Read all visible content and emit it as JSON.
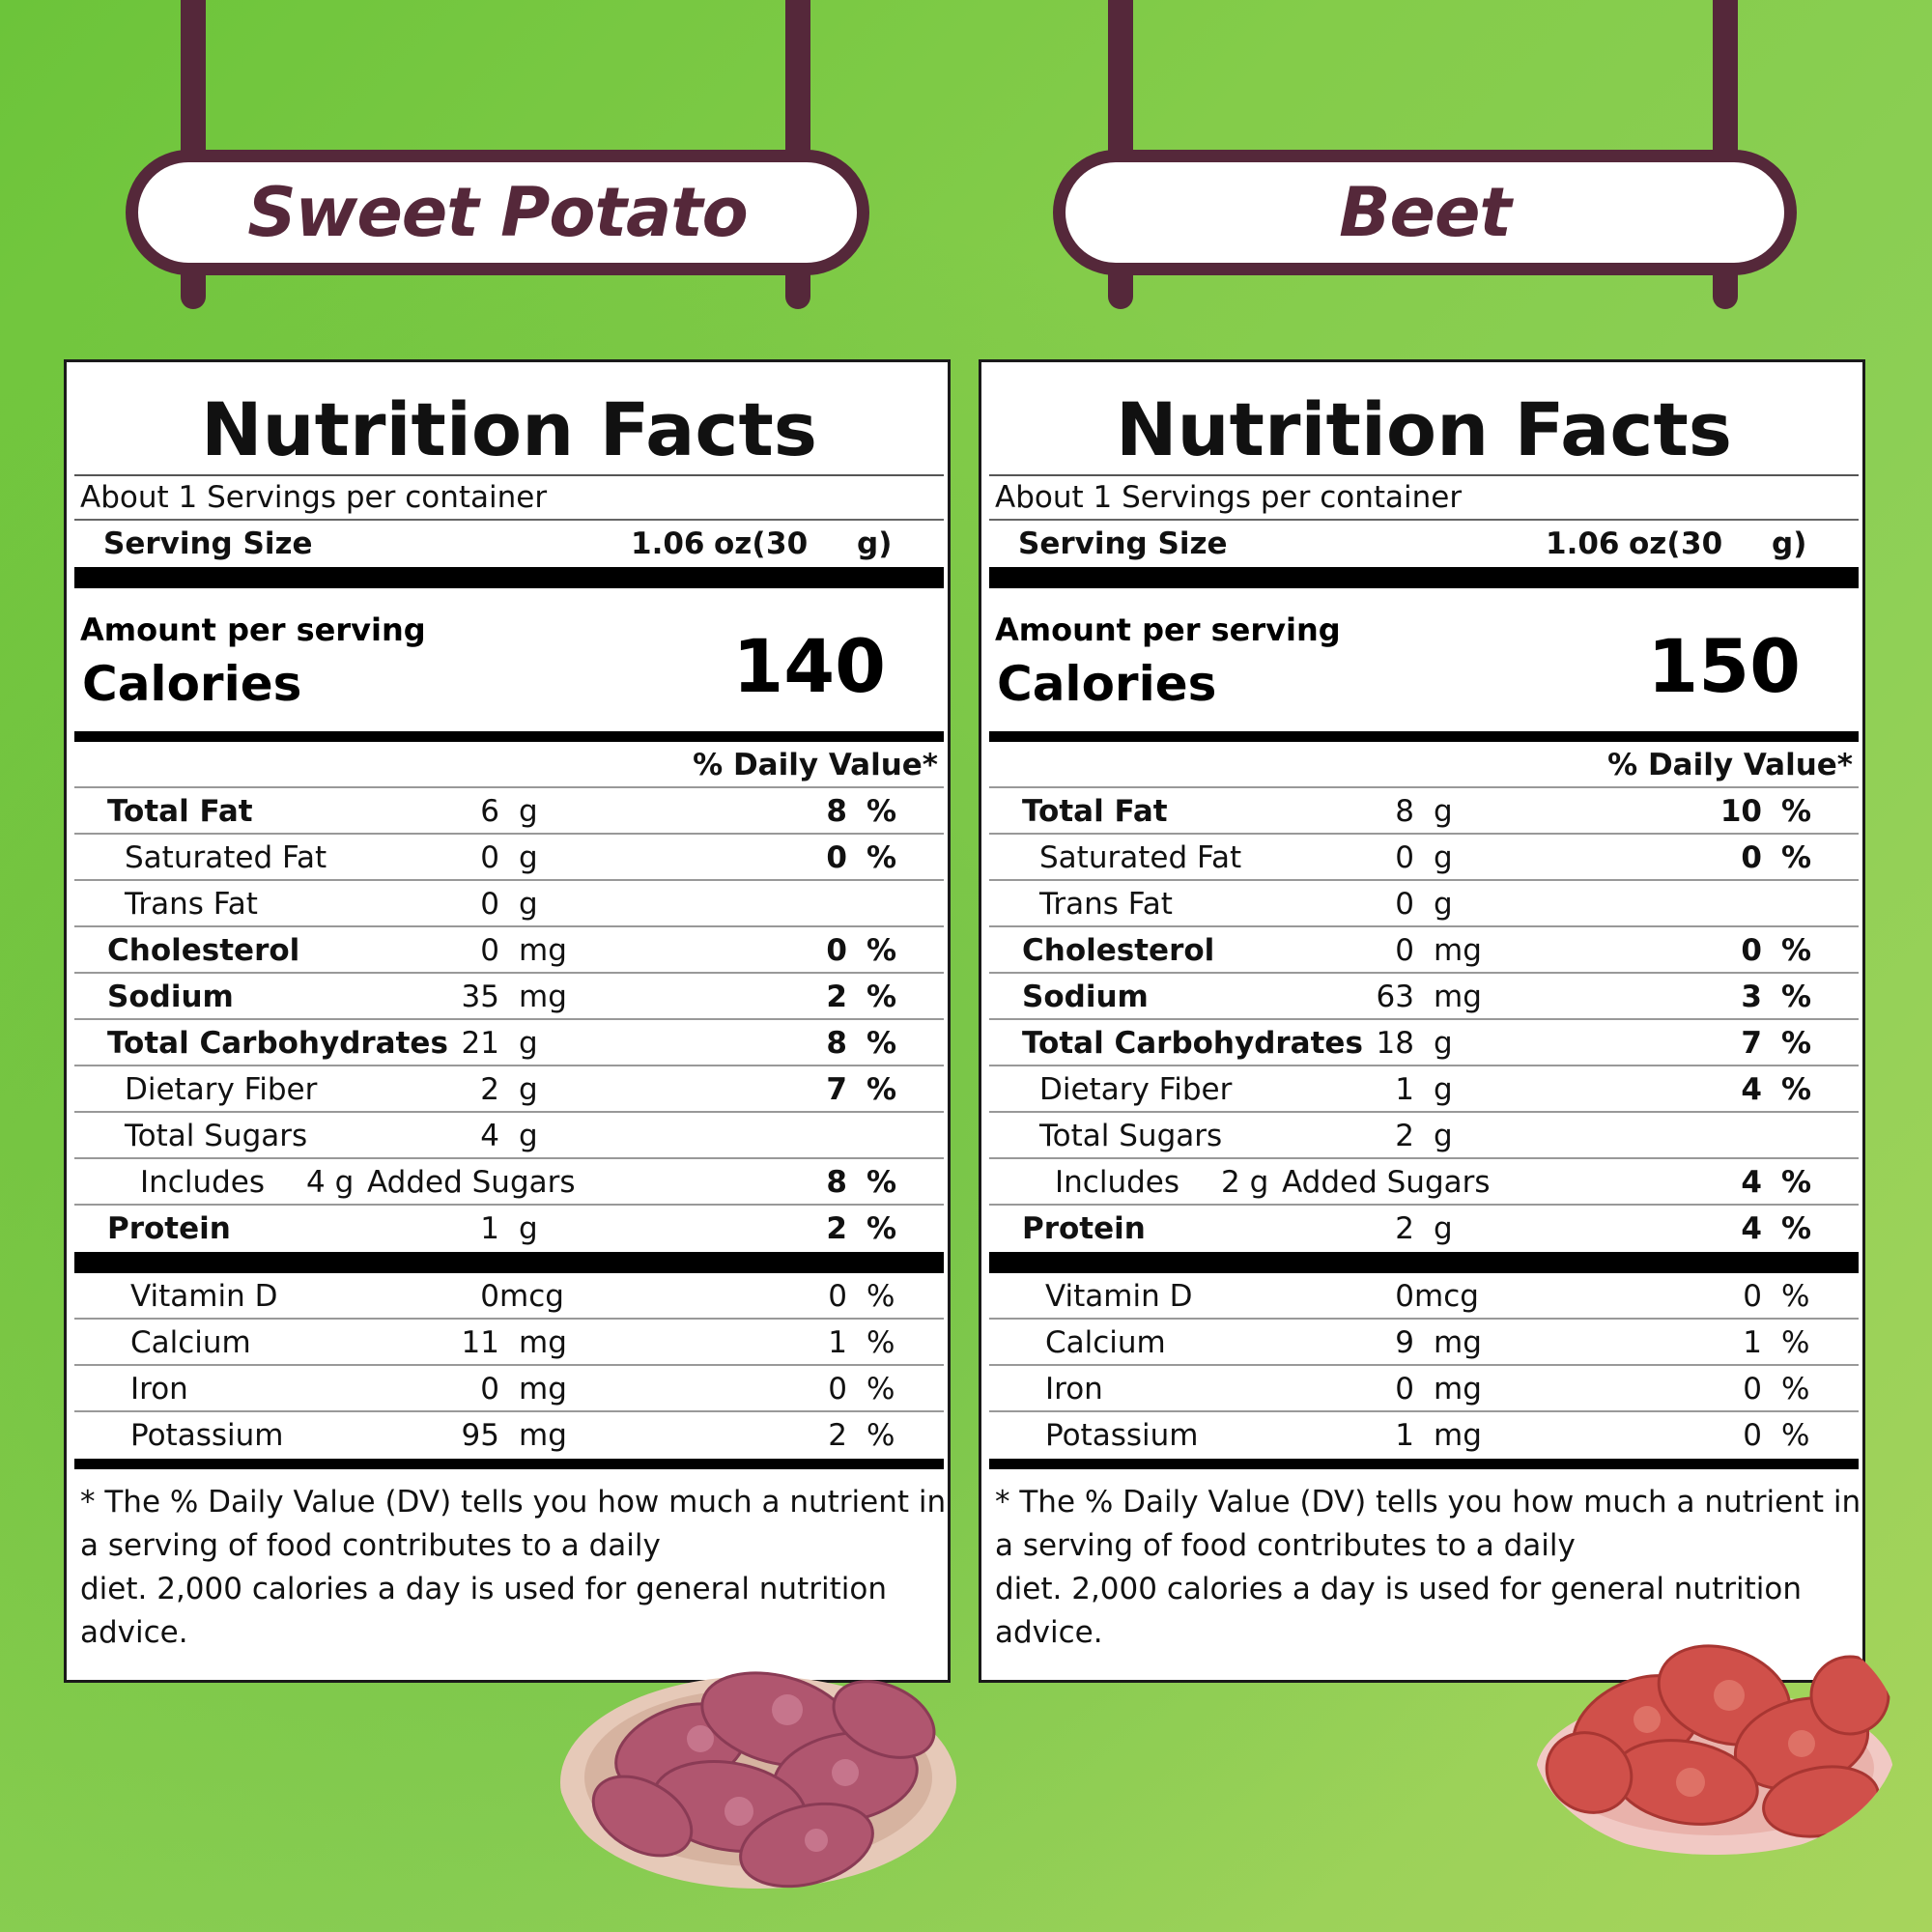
{
  "left": {
    "sign": "Sweet Potato",
    "title": "Nutrition Facts",
    "servings": "About 1 Servings per container",
    "serving_size_label": "Serving Size",
    "serving_size_oz": "1.06",
    "serving_size_oz_unit": "oz(",
    "serving_size_g": "30",
    "serving_size_g_unit": "g)",
    "amount_per_serving": "Amount per serving",
    "calories_label": "Calories",
    "calories": "140",
    "dv_header": "% Daily Value*",
    "nutrients": [
      {
        "name": "Total Fat",
        "amount": "6",
        "unit": "g",
        "pct": "8",
        "sign": "%"
      },
      {
        "name": "Saturated Fat",
        "amount": "0",
        "unit": "g",
        "pct": "0",
        "sign": "%"
      },
      {
        "name": "Trans Fat",
        "amount": "0",
        "unit": "g",
        "pct": "",
        "sign": ""
      },
      {
        "name": "Cholesterol",
        "amount": "0",
        "unit": "mg",
        "pct": "0",
        "sign": "%"
      },
      {
        "name": "Sodium",
        "amount": "35",
        "unit": "mg",
        "pct": "2",
        "sign": "%"
      },
      {
        "name": "Total Carbohydrates",
        "amount": "21",
        "unit": "g",
        "pct": "8",
        "sign": "%"
      },
      {
        "name": "Dietary Fiber",
        "amount": "2",
        "unit": "g",
        "pct": "7",
        "sign": "%"
      },
      {
        "name": "Total Sugars",
        "amount": "4",
        "unit": "g",
        "pct": "",
        "sign": ""
      },
      {
        "name": "Includes",
        "amount": "4 g",
        "unit": "Added Sugars",
        "pct": "8",
        "sign": "%"
      },
      {
        "name": "Protein",
        "amount": "1",
        "unit": "g",
        "pct": "2",
        "sign": "%"
      }
    ],
    "vitamins": [
      {
        "name": "Vitamin D",
        "amount": "0",
        "unit": "mcg",
        "pct": "0",
        "sign": "%"
      },
      {
        "name": "Calcium",
        "amount": "11",
        "unit": "mg",
        "pct": "1",
        "sign": "%"
      },
      {
        "name": "Iron",
        "amount": "0",
        "unit": "mg",
        "pct": "0",
        "sign": "%"
      },
      {
        "name": "Potassium",
        "amount": "95",
        "unit": "mg",
        "pct": "2",
        "sign": "%"
      }
    ],
    "footnote": [
      " * The % Daily Value (DV) tells you how much a nutrient in",
      "a serving of food contributes to a daily",
      "diet. 2,000 calories a day is used for general nutrition",
      "advice."
    ]
  },
  "right": {
    "sign": "Beet",
    "title": "Nutrition Facts",
    "servings": "About 1 Servings per container",
    "serving_size_label": "Serving Size",
    "serving_size_oz": "1.06",
    "serving_size_oz_unit": "oz(",
    "serving_size_g": "30",
    "serving_size_g_unit": "g)",
    "amount_per_serving": "Amount per serving",
    "calories_label": "Calories",
    "calories": "150",
    "dv_header": "% Daily Value*",
    "nutrients": [
      {
        "name": "Total Fat",
        "amount": "8",
        "unit": "g",
        "pct": "10",
        "sign": "%"
      },
      {
        "name": "Saturated Fat",
        "amount": "0",
        "unit": "g",
        "pct": "0",
        "sign": "%"
      },
      {
        "name": "Trans Fat",
        "amount": "0",
        "unit": "g",
        "pct": "",
        "sign": ""
      },
      {
        "name": "Cholesterol",
        "amount": "0",
        "unit": "mg",
        "pct": "0",
        "sign": "%"
      },
      {
        "name": "Sodium",
        "amount": "63",
        "unit": "mg",
        "pct": "3",
        "sign": "%"
      },
      {
        "name": "Total Carbohydrates",
        "amount": "18",
        "unit": "g",
        "pct": "7",
        "sign": "%"
      },
      {
        "name": "Dietary Fiber",
        "amount": "1",
        "unit": "g",
        "pct": "4",
        "sign": "%"
      },
      {
        "name": "Total Sugars",
        "amount": "2",
        "unit": "g",
        "pct": "",
        "sign": ""
      },
      {
        "name": "Includes",
        "amount": "2 g",
        "unit": "Added Sugars",
        "pct": "4",
        "sign": "%"
      },
      {
        "name": "Protein",
        "amount": "2",
        "unit": "g",
        "pct": "4",
        "sign": "%"
      }
    ],
    "vitamins": [
      {
        "name": "Vitamin D",
        "amount": "0",
        "unit": "mcg",
        "pct": "0",
        "sign": "%"
      },
      {
        "name": "Calcium",
        "amount": "9",
        "unit": "mg",
        "pct": "1",
        "sign": "%"
      },
      {
        "name": "Iron",
        "amount": "0",
        "unit": "mg",
        "pct": "0",
        "sign": "%"
      },
      {
        "name": "Potassium",
        "amount": "1",
        "unit": "mg",
        "pct": "0",
        "sign": "%"
      }
    ],
    "footnote": [
      " * The % Daily Value (DV) tells you how much a nutrient in",
      "a serving of food contributes to a daily",
      "diet. 2,000 calories a day is used for general nutrition",
      "advice."
    ]
  }
}
